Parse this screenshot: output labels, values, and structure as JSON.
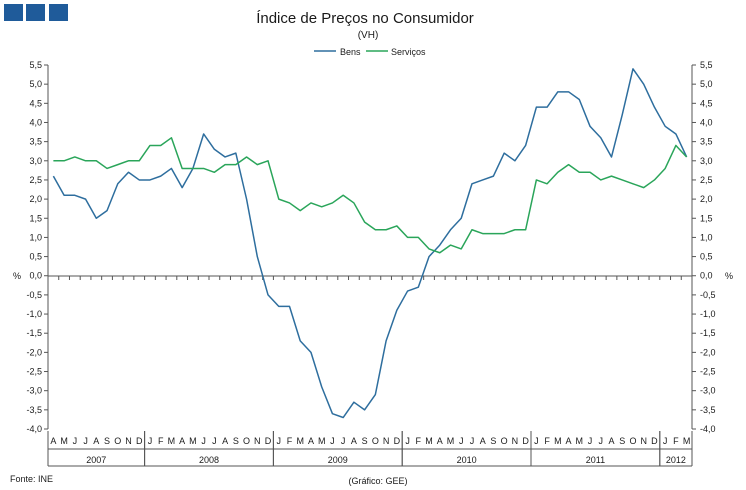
{
  "chart_data": {
    "type": "line",
    "title": "Índice de Preços no Consumidor",
    "subtitle": "(VH)",
    "ylabel_left": "%",
    "ylabel_right": "%",
    "ylim": [
      -4.0,
      5.5
    ],
    "ystep": 0.5,
    "ytick_labels": [
      "-4,0",
      "-3,5",
      "-3,0",
      "-2,5",
      "-2,0",
      "-1,5",
      "-1,0",
      "-0,5",
      "0,0",
      "0,5",
      "1,0",
      "1,5",
      "2,0",
      "2,5",
      "3,0",
      "3,5",
      "4,0",
      "4,5",
      "5,0",
      "5,5"
    ],
    "legend": {
      "position": "top-center",
      "entries": [
        "Bens",
        "Serviços"
      ]
    },
    "months": [
      "A",
      "M",
      "J",
      "J",
      "A",
      "S",
      "O",
      "N",
      "D",
      "J",
      "F",
      "M",
      "A",
      "M",
      "J",
      "J",
      "A",
      "S",
      "O",
      "N",
      "D",
      "J",
      "F",
      "M",
      "A",
      "M",
      "J",
      "J",
      "A",
      "S",
      "O",
      "N",
      "D",
      "J",
      "F",
      "M",
      "A",
      "M",
      "J",
      "J",
      "A",
      "S",
      "O",
      "N",
      "D",
      "J",
      "F",
      "M",
      "A",
      "M",
      "J",
      "J",
      "A",
      "S",
      "O",
      "N",
      "D",
      "J",
      "F",
      "M"
    ],
    "years": [
      {
        "label": "2007",
        "start": 0,
        "count": 9
      },
      {
        "label": "2008",
        "start": 9,
        "count": 12
      },
      {
        "label": "2009",
        "start": 21,
        "count": 12
      },
      {
        "label": "2010",
        "start": 33,
        "count": 12
      },
      {
        "label": "2011",
        "start": 45,
        "count": 12
      },
      {
        "label": "2012",
        "start": 57,
        "count": 3
      }
    ],
    "series": [
      {
        "name": "Bens",
        "color": "#2e6e9e",
        "values": [
          2.6,
          2.1,
          2.1,
          2.0,
          1.5,
          1.7,
          2.4,
          2.7,
          2.5,
          2.5,
          2.6,
          2.8,
          2.3,
          2.8,
          3.7,
          3.3,
          3.1,
          3.2,
          2.0,
          0.5,
          -0.5,
          -0.8,
          -0.8,
          -1.7,
          -2.0,
          -2.9,
          -3.6,
          -3.7,
          -3.3,
          -3.5,
          -3.1,
          -1.7,
          -0.9,
          -0.4,
          -0.3,
          0.5,
          0.8,
          1.2,
          1.5,
          2.4,
          2.5,
          2.6,
          3.2,
          3.0,
          3.4,
          4.4,
          4.4,
          4.8,
          4.8,
          4.6,
          3.9,
          3.6,
          3.1,
          4.2,
          5.4,
          5.0,
          4.4,
          3.9,
          3.7,
          3.1
        ]
      },
      {
        "name": "Serviços",
        "color": "#2aa55a",
        "values": [
          3.0,
          3.0,
          3.1,
          3.0,
          3.0,
          2.8,
          2.9,
          3.0,
          3.0,
          3.4,
          3.4,
          3.6,
          2.8,
          2.8,
          2.8,
          2.7,
          2.9,
          2.9,
          3.1,
          2.9,
          3.0,
          2.0,
          1.9,
          1.7,
          1.9,
          1.8,
          1.9,
          2.1,
          1.9,
          1.4,
          1.2,
          1.2,
          1.3,
          1.0,
          1.0,
          0.7,
          0.6,
          0.8,
          0.7,
          1.2,
          1.1,
          1.1,
          1.1,
          1.2,
          1.2,
          2.5,
          2.4,
          2.7,
          2.9,
          2.7,
          2.7,
          2.5,
          2.6,
          2.5,
          2.4,
          2.3,
          2.5,
          2.8,
          3.4,
          3.1
        ]
      }
    ],
    "source_left": "Fonte: INE",
    "source_center": "(Gráfico: GEE)"
  },
  "logo": {
    "color": "#1f5b9a"
  }
}
